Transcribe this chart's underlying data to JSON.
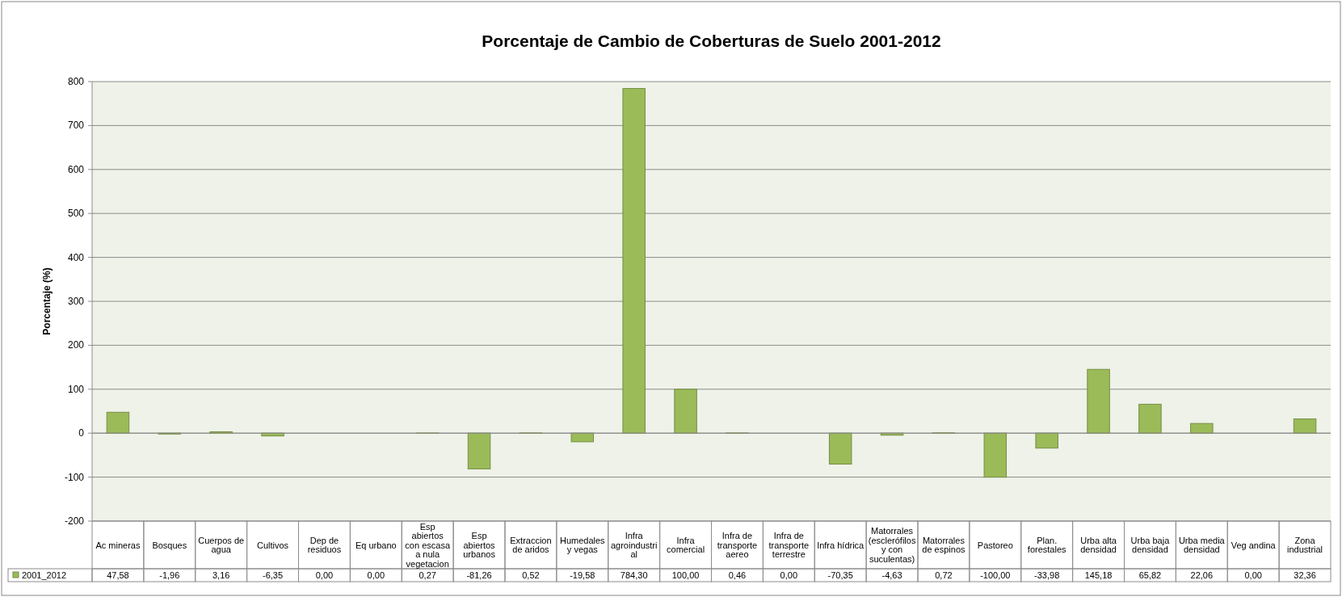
{
  "chart_data": {
    "type": "bar",
    "title": "Porcentaje de Cambio de Coberturas de Suelo 2001-2012",
    "ylabel": "Porcentaje (%)",
    "categories": [
      "Ac mineras",
      "Bosques",
      "Cuerpos de agua",
      "Cultivos",
      "Dep de residuos",
      "Eq urbano",
      "Esp abiertos con escasa a nula vegetacion",
      "Esp abiertos urbanos",
      "Extraccion de aridos",
      "Humedales y vegas",
      "Infra agroindustrial",
      "Infra comercial",
      "Infra de transporte aereo",
      "Infra de transporte terrestre",
      "Infra hídrica",
      "Matorrales (esclerófilos y con suculentas)",
      "Matorrales de espinos",
      "Pastoreo",
      "Plan. forestales",
      "Urba alta densidad",
      "Urba baja densidad",
      "Urba media densidad",
      "Veg andina",
      "Zona industrial"
    ],
    "series": [
      {
        "name": "2001_2012",
        "color": "#9bbb59",
        "values": [
          47.58,
          -1.96,
          3.16,
          -6.35,
          0,
          0,
          0.27,
          -81.26,
          0.52,
          -19.58,
          784.3,
          100,
          0.46,
          0,
          -70.35,
          -4.63,
          0.72,
          -100,
          -33.98,
          145.18,
          65.82,
          22.06,
          0,
          32.36
        ],
        "value_labels": [
          "47,58",
          "-1,96",
          "3,16",
          "-6,35",
          "0,00",
          "0,00",
          "0,27",
          "-81,26",
          "0,52",
          "-19,58",
          "784,30",
          "100,00",
          "0,46",
          "0,00",
          "-70,35",
          "-4,63",
          "0,72",
          "-100,00",
          "-33,98",
          "145,18",
          "65,82",
          "22,06",
          "0,00",
          "32,36"
        ]
      }
    ],
    "ylim": [
      -200,
      800
    ],
    "yticks": [
      -200,
      -100,
      0,
      100,
      200,
      300,
      400,
      500,
      600,
      700,
      800
    ],
    "grid": "y",
    "legend": "bottom"
  }
}
